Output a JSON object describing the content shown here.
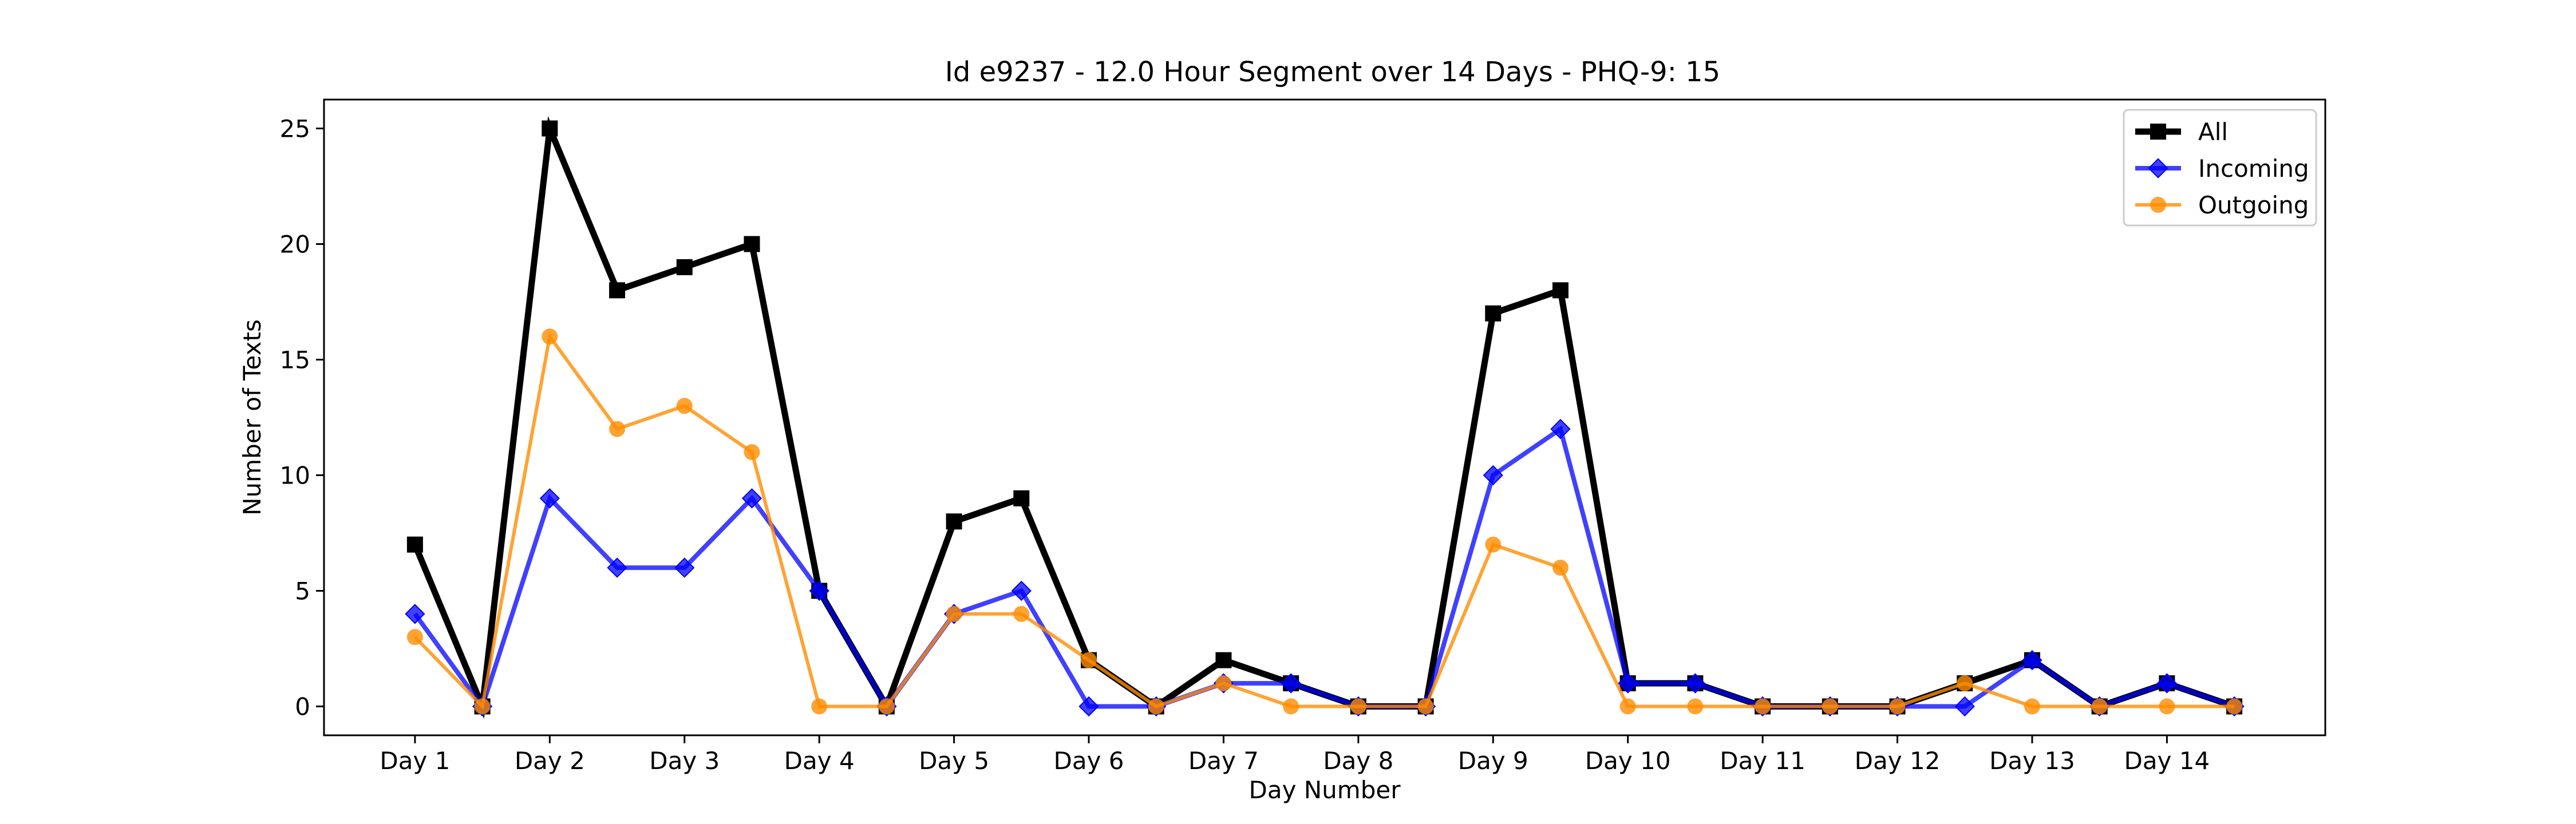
{
  "chart_data": {
    "type": "line",
    "title": "Id e9237 - 12.0 Hour Segment over 14 Days - PHQ-9: 15",
    "xlabel": "Day Number",
    "ylabel": "Number of Texts",
    "xtick_labels": [
      "Day 1",
      "Day 2",
      "Day 3",
      "Day 4",
      "Day 5",
      "Day 6",
      "Day 7",
      "Day 8",
      "Day 9",
      "Day 10",
      "Day 11",
      "Day 12",
      "Day 13",
      "Day 14"
    ],
    "yticks": [
      0,
      5,
      10,
      15,
      20,
      25
    ],
    "ylim": [
      -1.25,
      26.25
    ],
    "x": [
      1,
      1.5,
      2,
      2.5,
      3,
      3.5,
      4,
      4.5,
      5,
      5.5,
      6,
      6.5,
      7,
      7.5,
      8,
      8.5,
      9,
      9.5,
      10,
      10.5,
      11,
      11.5,
      12,
      12.5,
      13,
      13.5,
      14,
      14.5
    ],
    "xlim": [
      0.325,
      15.175
    ],
    "grid": false,
    "legend_position": "top-right",
    "series": [
      {
        "name": "All",
        "color": "#000000",
        "marker": "square",
        "values": [
          7,
          0,
          25,
          18,
          19,
          20,
          5,
          0,
          8,
          9,
          2,
          0,
          2,
          1,
          0,
          0,
          17,
          18,
          1,
          1,
          0,
          0,
          0,
          1,
          2,
          0,
          1,
          0
        ]
      },
      {
        "name": "Incoming",
        "color": "#0000ff",
        "marker": "diamond",
        "values": [
          4,
          0,
          9,
          6,
          6,
          9,
          5,
          0,
          4,
          5,
          0,
          0,
          1,
          1,
          0,
          0,
          10,
          12,
          1,
          1,
          0,
          0,
          0,
          0,
          2,
          0,
          1,
          0
        ]
      },
      {
        "name": "Outgoing",
        "color": "#ff8c00",
        "marker": "circle",
        "values": [
          3,
          0,
          16,
          12,
          13,
          11,
          0,
          0,
          4,
          4,
          2,
          0,
          1,
          0,
          0,
          0,
          7,
          6,
          0,
          0,
          0,
          0,
          0,
          1,
          0,
          0,
          0,
          0
        ]
      }
    ]
  }
}
